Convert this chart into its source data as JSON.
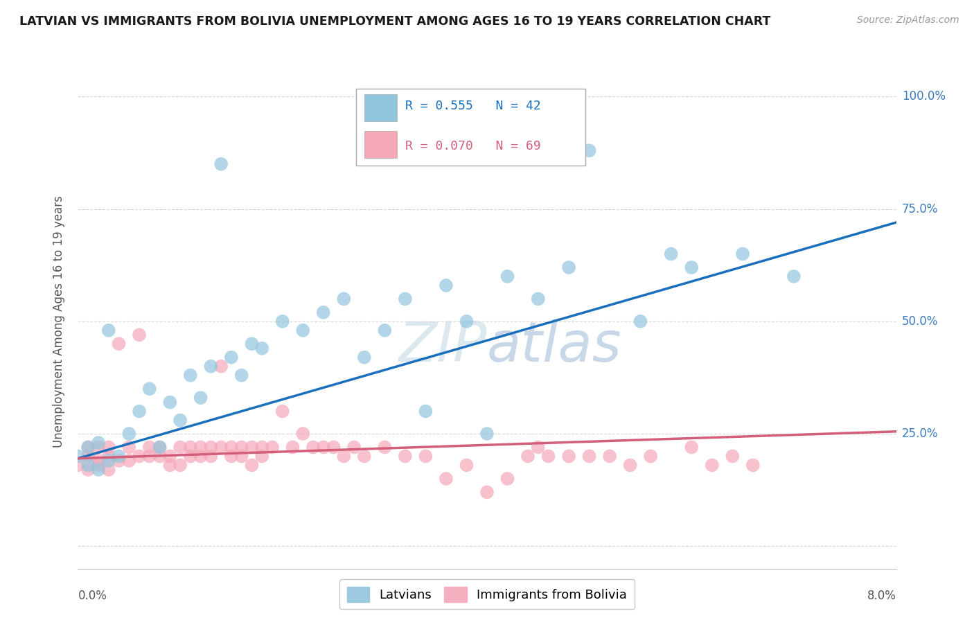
{
  "title": "LATVIAN VS IMMIGRANTS FROM BOLIVIA UNEMPLOYMENT AMONG AGES 16 TO 19 YEARS CORRELATION CHART",
  "source": "Source: ZipAtlas.com",
  "ylabel": "Unemployment Among Ages 16 to 19 years",
  "xlim": [
    0.0,
    0.08
  ],
  "ylim": [
    -0.05,
    1.05
  ],
  "ytick_vals": [
    0.0,
    0.25,
    0.5,
    0.75,
    1.0
  ],
  "ytick_labels": [
    "",
    "25.0%",
    "50.0%",
    "75.0%",
    "100.0%"
  ],
  "latvian_color": "#92c5de",
  "latvia_line_color": "#1a6fbd",
  "bolivia_color": "#f4a8b8",
  "bolivia_line_color": "#d45f7a",
  "latvian_R": 0.555,
  "latvian_N": 42,
  "bolivia_R": 0.07,
  "bolivia_N": 69,
  "background_color": "#ffffff",
  "grid_color": "#cccccc",
  "watermark_color": "#dce8f0",
  "legend_latvians": "Latvians",
  "legend_bolivia": "Immigrants from Bolivia",
  "latvian_x": [
    0.0,
    0.001,
    0.001,
    0.002,
    0.002,
    0.003,
    0.003,
    0.004,
    0.005,
    0.006,
    0.007,
    0.008,
    0.009,
    0.01,
    0.011,
    0.012,
    0.013,
    0.014,
    0.015,
    0.016,
    0.017,
    0.018,
    0.02,
    0.022,
    0.024,
    0.026,
    0.028,
    0.03,
    0.032,
    0.034,
    0.036,
    0.038,
    0.04,
    0.042,
    0.045,
    0.048,
    0.05,
    0.055,
    0.058,
    0.06,
    0.065,
    0.07
  ],
  "latvian_y": [
    0.2,
    0.18,
    0.22,
    0.17,
    0.23,
    0.19,
    0.48,
    0.2,
    0.25,
    0.3,
    0.35,
    0.22,
    0.32,
    0.28,
    0.38,
    0.33,
    0.4,
    0.85,
    0.42,
    0.38,
    0.45,
    0.44,
    0.5,
    0.48,
    0.52,
    0.55,
    0.42,
    0.48,
    0.55,
    0.3,
    0.58,
    0.5,
    0.25,
    0.6,
    0.55,
    0.62,
    0.88,
    0.5,
    0.65,
    0.62,
    0.65,
    0.6
  ],
  "bolivia_x": [
    0.0,
    0.001,
    0.001,
    0.001,
    0.002,
    0.002,
    0.002,
    0.003,
    0.003,
    0.003,
    0.004,
    0.004,
    0.005,
    0.005,
    0.006,
    0.006,
    0.007,
    0.007,
    0.008,
    0.008,
    0.009,
    0.009,
    0.01,
    0.01,
    0.011,
    0.011,
    0.012,
    0.012,
    0.013,
    0.013,
    0.014,
    0.014,
    0.015,
    0.015,
    0.016,
    0.016,
    0.017,
    0.017,
    0.018,
    0.018,
    0.019,
    0.02,
    0.021,
    0.022,
    0.023,
    0.024,
    0.025,
    0.026,
    0.027,
    0.028,
    0.03,
    0.032,
    0.034,
    0.036,
    0.038,
    0.04,
    0.042,
    0.044,
    0.045,
    0.046,
    0.048,
    0.05,
    0.052,
    0.054,
    0.056,
    0.06,
    0.062,
    0.064,
    0.066
  ],
  "bolivia_y": [
    0.18,
    0.2,
    0.17,
    0.22,
    0.19,
    0.22,
    0.18,
    0.2,
    0.22,
    0.17,
    0.45,
    0.19,
    0.22,
    0.19,
    0.47,
    0.2,
    0.22,
    0.2,
    0.22,
    0.2,
    0.2,
    0.18,
    0.22,
    0.18,
    0.22,
    0.2,
    0.22,
    0.2,
    0.22,
    0.2,
    0.4,
    0.22,
    0.22,
    0.2,
    0.22,
    0.2,
    0.22,
    0.18,
    0.22,
    0.2,
    0.22,
    0.3,
    0.22,
    0.25,
    0.22,
    0.22,
    0.22,
    0.2,
    0.22,
    0.2,
    0.22,
    0.2,
    0.2,
    0.15,
    0.18,
    0.12,
    0.15,
    0.2,
    0.22,
    0.2,
    0.2,
    0.2,
    0.2,
    0.18,
    0.2,
    0.22,
    0.18,
    0.2,
    0.18
  ]
}
